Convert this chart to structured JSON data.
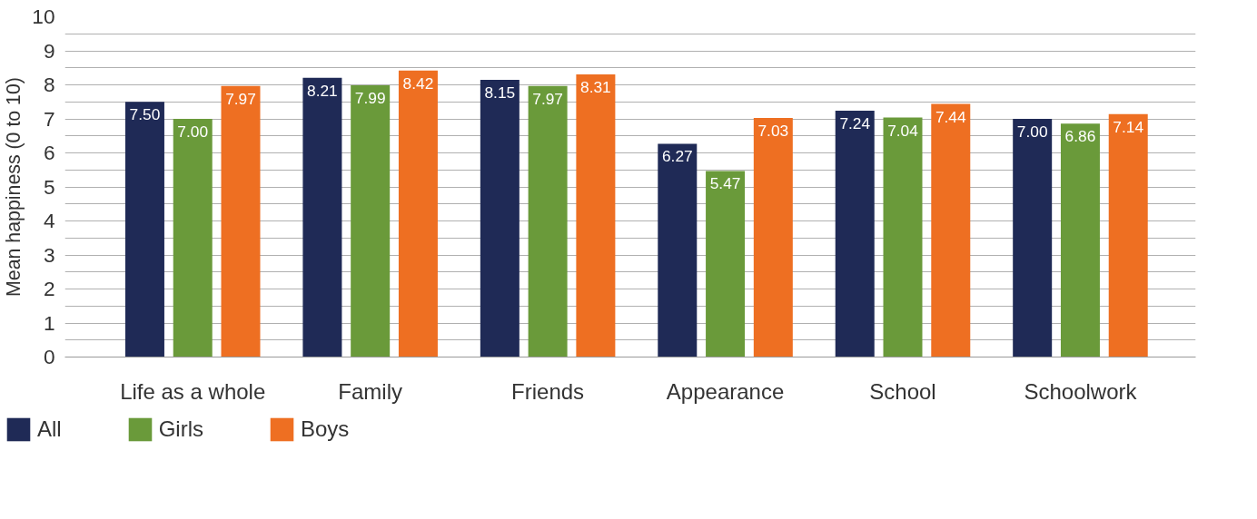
{
  "chart_data": {
    "type": "bar",
    "ylabel": "Mean happiness (0 to 10)",
    "categories": [
      "Life as a whole",
      "Family",
      "Friends",
      "Appearance",
      "School",
      "Schoolwork"
    ],
    "series": [
      {
        "name": "All",
        "color": "#1f2a56",
        "values": [
          7.5,
          8.21,
          8.15,
          6.27,
          7.24,
          7.0
        ],
        "value_labels": [
          "7.50",
          "8.21",
          "8.15",
          "6.27",
          "7.24",
          "7.00"
        ]
      },
      {
        "name": "Girls",
        "color": "#6a9a3a",
        "values": [
          7.0,
          7.99,
          7.97,
          5.47,
          7.04,
          6.86
        ],
        "value_labels": [
          "7.00",
          "7.99",
          "7.97",
          "5.47",
          "7.04",
          "6.86"
        ]
      },
      {
        "name": "Boys",
        "color": "#ee6f22",
        "values": [
          7.97,
          8.42,
          8.31,
          7.03,
          7.44,
          7.14
        ],
        "value_labels": [
          "7.97",
          "8.42",
          "8.31",
          "7.03",
          "7.44",
          "7.14"
        ]
      }
    ],
    "ylim": [
      0,
      10
    ],
    "yticks": [
      0,
      {
        "value": 0.5,
        "label": null
      },
      1,
      {
        "value": 1.5,
        "label": null
      },
      2,
      {
        "value": 2.5,
        "label": null
      },
      3,
      {
        "value": 3.5,
        "label": null
      },
      4,
      {
        "value": 4.5,
        "label": null
      },
      5,
      {
        "value": 5.5,
        "label": null
      },
      6,
      {
        "value": 6.5,
        "label": null
      },
      7,
      {
        "value": 7.5,
        "label": null
      },
      8,
      {
        "value": 8.5,
        "label": null
      },
      9,
      {
        "value": 9.5,
        "label": null
      },
      10
    ],
    "grid": "y",
    "legend": "bottom left"
  }
}
